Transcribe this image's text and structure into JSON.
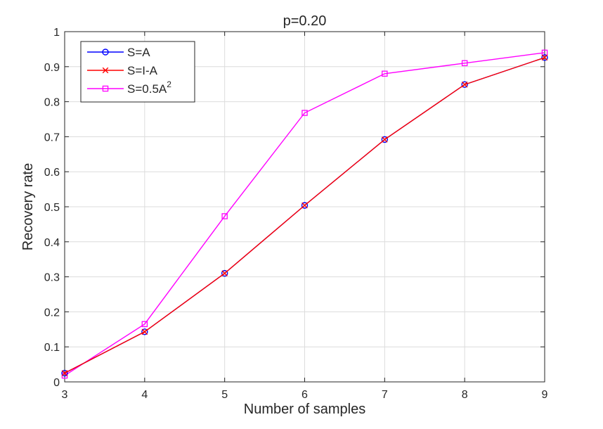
{
  "chart_data": {
    "type": "line",
    "title": "p=0.20",
    "xlabel": "Number of samples",
    "ylabel": "Recovery rate",
    "xlim": [
      3,
      9
    ],
    "ylim": [
      0,
      1
    ],
    "x_ticks": [
      "3",
      "4",
      "5",
      "6",
      "7",
      "8",
      "9"
    ],
    "y_ticks": [
      "0",
      "0.1",
      "0.2",
      "0.3",
      "0.4",
      "0.5",
      "0.6",
      "0.7",
      "0.8",
      "0.9",
      "1"
    ],
    "grid": true,
    "legend_position": "top-left",
    "x": [
      3,
      4,
      5,
      6,
      7,
      8,
      9
    ],
    "series": [
      {
        "name": "S=A",
        "label_main": "S=A",
        "label_sup": "",
        "color": "#0000ff",
        "marker": "circle",
        "values": [
          0.025,
          0.143,
          0.31,
          0.504,
          0.692,
          0.849,
          0.926
        ]
      },
      {
        "name": "S=I-A",
        "label_main": "S=I-A",
        "label_sup": "",
        "color": "#ff0000",
        "marker": "x",
        "values": [
          0.025,
          0.143,
          0.31,
          0.504,
          0.692,
          0.849,
          0.926
        ]
      },
      {
        "name": "S=0.5A^2",
        "label_main": "S=0.5A",
        "label_sup": "2",
        "color": "#ff00ff",
        "marker": "square",
        "values": [
          0.018,
          0.165,
          0.473,
          0.768,
          0.88,
          0.91,
          0.94
        ]
      }
    ]
  }
}
